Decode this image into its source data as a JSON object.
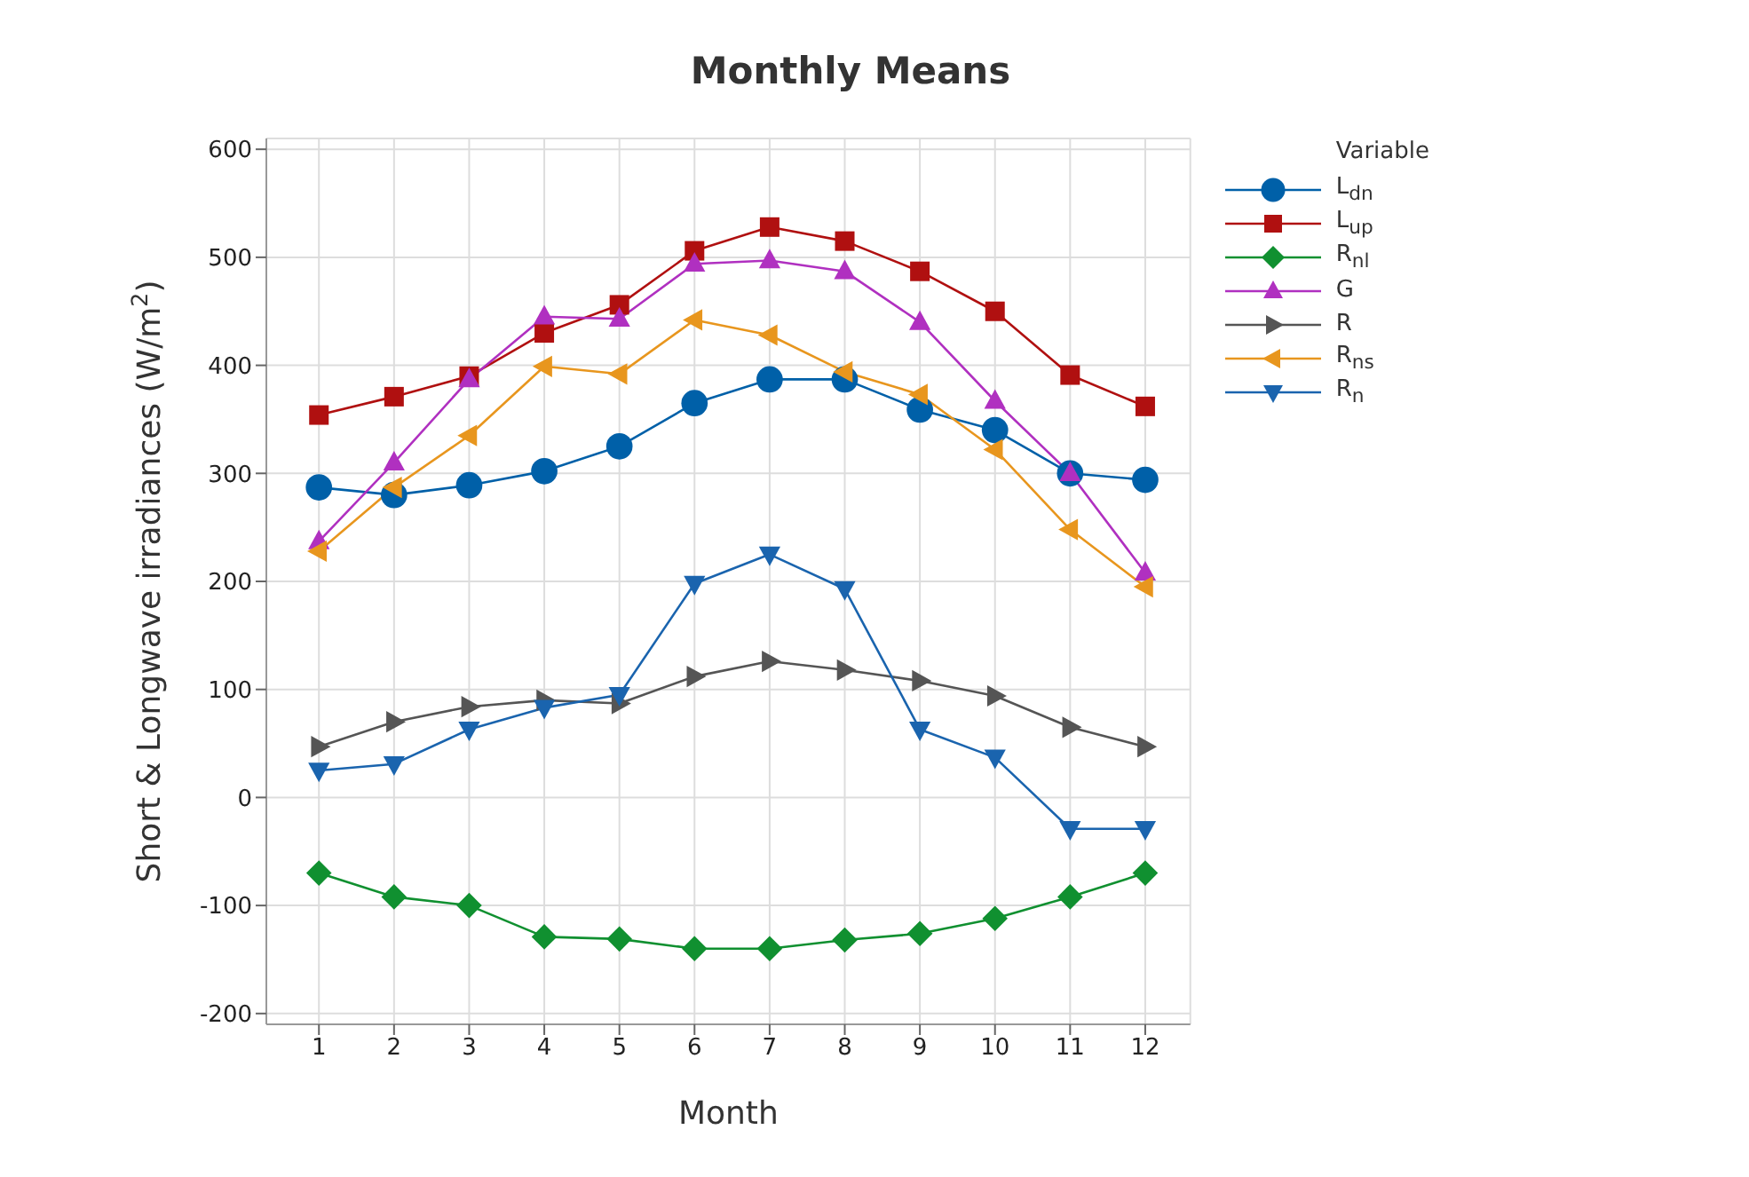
{
  "chart_data": {
    "type": "line",
    "title": "Monthly Means",
    "xlabel": "Month",
    "ylabel": "Short & Longwave irradiances (W/m$^{2}$)",
    "legend_title": "Variable",
    "x": [
      1,
      2,
      3,
      4,
      5,
      6,
      7,
      8,
      9,
      10,
      11,
      12
    ],
    "xlim": [
      0.3,
      12.6
    ],
    "xticks": [
      1,
      2,
      3,
      4,
      5,
      6,
      7,
      8,
      9,
      10,
      11,
      12
    ],
    "ylim": [
      -210,
      610
    ],
    "yticks": [
      -200,
      -100,
      0,
      100,
      200,
      300,
      400,
      500,
      600
    ],
    "grid": true,
    "legend": "right",
    "line_style": "solid",
    "series": [
      {
        "name": "L$_{dn}$",
        "color": "#0060a8",
        "marker": "circle",
        "values": [
          287,
          280,
          289,
          302,
          325,
          365,
          387,
          387,
          359,
          340,
          300,
          294
        ]
      },
      {
        "name": "L$_{up}$",
        "color": "#b01010",
        "marker": "square",
        "values": [
          354,
          371,
          390,
          430,
          456,
          506,
          528,
          515,
          487,
          450,
          391,
          362
        ]
      },
      {
        "name": "R$_{nl}$",
        "color": "#109030",
        "marker": "diamond",
        "values": [
          -70,
          -92,
          -100,
          -129,
          -131,
          -140,
          -140,
          -132,
          -126,
          -112,
          -92,
          -70
        ]
      },
      {
        "name": "G",
        "color": "#b030c0",
        "marker": "triangle",
        "values": [
          237,
          310,
          387,
          445,
          443,
          494,
          497,
          487,
          440,
          367,
          300,
          208
        ]
      },
      {
        "name": "R",
        "color": "#555555",
        "marker": "triangle-right",
        "values": [
          47,
          70,
          84,
          90,
          87,
          112,
          126,
          118,
          108,
          94,
          65,
          47
        ]
      },
      {
        "name": "R$_{ns}$",
        "color": "#e8961e",
        "marker": "triangle-left",
        "values": [
          228,
          287,
          335,
          399,
          392,
          442,
          428,
          394,
          373,
          322,
          248,
          195
        ]
      },
      {
        "name": "R$_{n}$",
        "color": "#1a64ae",
        "marker": "triangle-down",
        "values": [
          25,
          31,
          63,
          83,
          95,
          198,
          225,
          193,
          63,
          37,
          -29,
          -29
        ]
      }
    ]
  }
}
